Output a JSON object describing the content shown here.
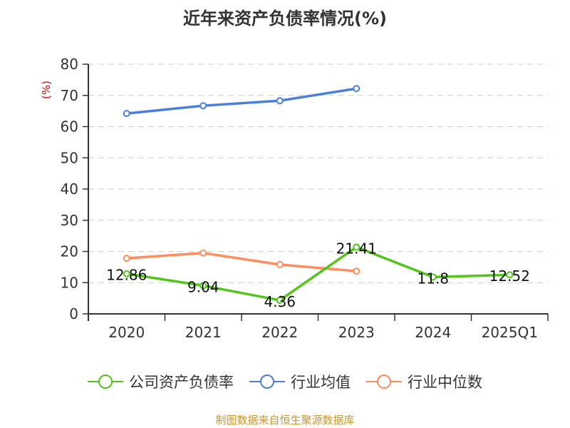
{
  "title": "近年来资产负债率情况(%)",
  "footer": "制图数据来自恒生聚源数据库",
  "colors": {
    "company": "#52c41a",
    "industry_avg": "#4a7fdc",
    "industry_median": "#ff8c5a",
    "axis": "#333333",
    "grid": "#cccccc",
    "unit_label": "#e60000",
    "footer": "#c8952e"
  },
  "legend": [
    {
      "name": "公司资产负债率",
      "color": "#52c41a"
    },
    {
      "name": "行业均值",
      "color": "#4a7fdc"
    },
    {
      "name": "行业中位数",
      "color": "#ff8c5a"
    }
  ],
  "chart_data": {
    "type": "line",
    "title": "近年来资产负债率情况(%)",
    "xlabel": "",
    "ylabel": "(%)",
    "categories": [
      "2020",
      "2021",
      "2022",
      "2023",
      "2024",
      "2025Q1"
    ],
    "ylim": [
      0,
      80
    ],
    "yticks": [
      0,
      10,
      20,
      30,
      40,
      50,
      60,
      70,
      80
    ],
    "grid": true,
    "legend_position": "bottom",
    "series": [
      {
        "name": "公司资产负债率",
        "values": [
          12.86,
          9.04,
          4.36,
          21.41,
          11.8,
          12.52
        ],
        "labels": [
          "12.86",
          "9.04",
          "4.36",
          "21.41",
          "11.8",
          "12.52"
        ]
      },
      {
        "name": "行业均值",
        "values": [
          64.2,
          66.7,
          68.3,
          72.2,
          null,
          null
        ]
      },
      {
        "name": "行业中位数",
        "values": [
          17.8,
          19.5,
          15.8,
          13.7,
          null,
          null
        ]
      }
    ]
  }
}
